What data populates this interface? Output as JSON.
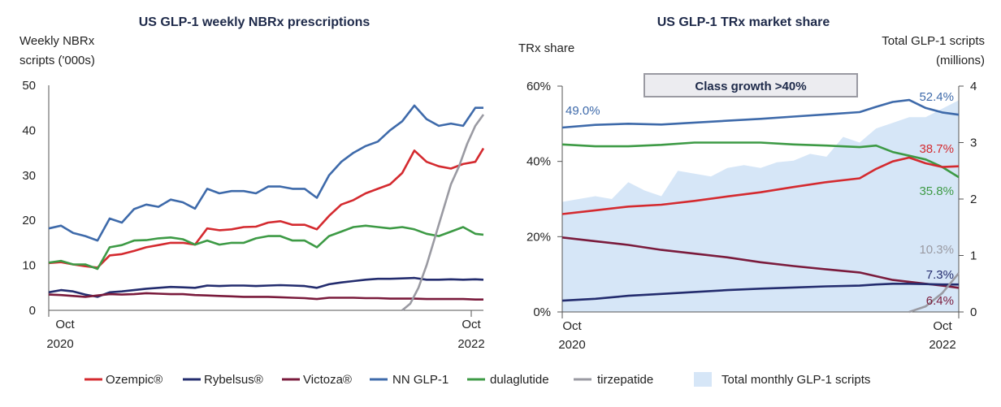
{
  "colors": {
    "ozempic": "#d42a2f",
    "rybelsus": "#232c6e",
    "victoza": "#7a1b3c",
    "nn": "#3e6aaa",
    "dula": "#3d9a45",
    "tirz": "#9a9aa2",
    "area": "#d6e6f7"
  },
  "legend": [
    {
      "key": "ozempic",
      "label": "Ozempic®",
      "kind": "line"
    },
    {
      "key": "rybelsus",
      "label": "Rybelsus®",
      "kind": "line"
    },
    {
      "key": "victoza",
      "label": "Victoza®",
      "kind": "line"
    },
    {
      "key": "nn",
      "label": "NN GLP-1",
      "kind": "line"
    },
    {
      "key": "dula",
      "label": "dulaglutide",
      "kind": "line"
    },
    {
      "key": "tirz",
      "label": "tirzepatide",
      "kind": "line"
    },
    {
      "key": "area",
      "label": "Total monthly GLP-1 scripts",
      "kind": "area"
    }
  ],
  "chart_data": [
    {
      "type": "line",
      "title": "US GLP-1 weekly NBRx prescriptions",
      "ylabel_lines": [
        "Weekly NBRx",
        "scripts ('000s)"
      ],
      "ylim": [
        0,
        50
      ],
      "yticks": [
        0,
        10,
        20,
        30,
        40,
        50
      ],
      "xticks": [
        {
          "x": 0,
          "line1": "Oct",
          "line2": "2020"
        },
        {
          "x": 104,
          "line1": "Oct",
          "line2": "2022"
        }
      ],
      "xrange": [
        0,
        107
      ],
      "series": [
        {
          "key": "nn",
          "x": [
            0,
            3,
            6,
            9,
            12,
            15,
            18,
            21,
            24,
            27,
            30,
            33,
            36,
            39,
            42,
            45,
            48,
            51,
            54,
            57,
            60,
            63,
            66,
            69,
            72,
            75,
            78,
            81,
            84,
            87,
            90,
            93,
            96,
            99,
            102,
            105,
            107
          ],
          "values": [
            18.2,
            18.8,
            17.2,
            16.5,
            15.5,
            20.4,
            19.5,
            22.5,
            23.5,
            23,
            24.6,
            24,
            22.6,
            27,
            26,
            26.5,
            26.5,
            26,
            27.5,
            27.5,
            27,
            27,
            25,
            30,
            33,
            35,
            36.5,
            37.5,
            40,
            42,
            45.5,
            42.5,
            41,
            41.5,
            41,
            45,
            45
          ]
        },
        {
          "key": "ozempic",
          "x": [
            0,
            3,
            6,
            9,
            12,
            15,
            18,
            21,
            24,
            27,
            30,
            33,
            36,
            39,
            42,
            45,
            48,
            51,
            54,
            57,
            60,
            63,
            66,
            69,
            72,
            75,
            78,
            81,
            84,
            87,
            90,
            93,
            96,
            99,
            102,
            105,
            107
          ],
          "values": [
            10.5,
            10.7,
            10.2,
            9.8,
            9.5,
            12.2,
            12.5,
            13.2,
            14,
            14.5,
            15,
            15,
            14.6,
            18.2,
            17.8,
            18,
            18.5,
            18.6,
            19.5,
            19.8,
            19,
            19,
            18,
            21,
            23.5,
            24.5,
            26,
            27,
            28,
            30.5,
            35.5,
            33,
            32,
            31.5,
            32.5,
            33,
            36
          ]
        },
        {
          "key": "dula",
          "x": [
            0,
            3,
            6,
            9,
            12,
            15,
            18,
            21,
            24,
            27,
            30,
            33,
            36,
            39,
            42,
            45,
            48,
            51,
            54,
            57,
            60,
            63,
            66,
            69,
            72,
            75,
            78,
            81,
            84,
            87,
            90,
            93,
            96,
            99,
            102,
            105,
            107
          ],
          "values": [
            10.6,
            11,
            10.2,
            10.2,
            9.2,
            14,
            14.5,
            15.5,
            15.6,
            16,
            16.2,
            15.8,
            14.6,
            15.5,
            14.6,
            15,
            15,
            16,
            16.5,
            16.5,
            15.5,
            15.5,
            14,
            16.5,
            17.5,
            18.5,
            18.8,
            18.5,
            18.2,
            18.5,
            18,
            17,
            16.5,
            17.5,
            18.5,
            17,
            16.8
          ]
        },
        {
          "key": "rybelsus",
          "x": [
            0,
            3,
            6,
            9,
            12,
            15,
            18,
            21,
            24,
            27,
            30,
            33,
            36,
            39,
            42,
            45,
            48,
            51,
            54,
            57,
            60,
            63,
            66,
            69,
            72,
            75,
            78,
            81,
            84,
            87,
            90,
            93,
            96,
            99,
            102,
            105,
            107
          ],
          "values": [
            4,
            4.5,
            4.2,
            3.5,
            3,
            4,
            4.2,
            4.5,
            4.8,
            5,
            5.2,
            5.1,
            5,
            5.5,
            5.4,
            5.5,
            5.5,
            5.4,
            5.5,
            5.6,
            5.5,
            5.4,
            5,
            5.8,
            6.2,
            6.5,
            6.8,
            7,
            7,
            7.1,
            7.2,
            6.8,
            6.8,
            6.9,
            6.8,
            6.9,
            6.8
          ]
        },
        {
          "key": "victoza",
          "x": [
            0,
            3,
            6,
            9,
            12,
            15,
            18,
            21,
            24,
            27,
            30,
            33,
            36,
            39,
            42,
            45,
            48,
            51,
            54,
            57,
            60,
            63,
            66,
            69,
            72,
            75,
            78,
            81,
            84,
            87,
            90,
            93,
            96,
            99,
            102,
            105,
            107
          ],
          "values": [
            3.5,
            3.4,
            3.2,
            3,
            3.3,
            3.6,
            3.5,
            3.6,
            3.8,
            3.7,
            3.6,
            3.6,
            3.4,
            3.3,
            3.2,
            3.1,
            3,
            3,
            3,
            2.9,
            2.8,
            2.7,
            2.5,
            2.8,
            2.8,
            2.8,
            2.7,
            2.7,
            2.6,
            2.6,
            2.6,
            2.5,
            2.5,
            2.5,
            2.5,
            2.4,
            2.4
          ]
        },
        {
          "key": "tirz",
          "x": [
            87,
            89,
            91,
            93,
            95,
            97,
            99,
            101,
            103,
            105,
            107
          ],
          "values": [
            0,
            1.5,
            5,
            10,
            16,
            22,
            28,
            32,
            37,
            41,
            43.5
          ]
        }
      ]
    },
    {
      "type": "line",
      "title": "US GLP-1 TRx market share",
      "ylabel_left": "TRx share",
      "ylabel_right_lines": [
        "Total GLP-1 scripts",
        "(millions)"
      ],
      "ylim": [
        0,
        60
      ],
      "yticks": [
        0,
        20,
        40,
        60
      ],
      "yticks_label": [
        "0%",
        "20%",
        "40%",
        "60%"
      ],
      "y2lim": [
        0,
        4
      ],
      "y2ticks": [
        0,
        1,
        2,
        3,
        4
      ],
      "xrange": [
        0,
        24
      ],
      "xticks": [
        {
          "x": 0,
          "line1": "Oct",
          "line2": "2020"
        },
        {
          "x": 24,
          "line1": "Oct",
          "line2": "2022"
        }
      ],
      "box_label": "Class growth >40%",
      "area": {
        "key": "area",
        "x": [
          0,
          1,
          2,
          3,
          4,
          5,
          6,
          7,
          8,
          9,
          10,
          11,
          12,
          13,
          14,
          15,
          16,
          17,
          18,
          19,
          20,
          21,
          22,
          23,
          24
        ],
        "values": [
          1.95,
          2.0,
          2.05,
          2.0,
          2.3,
          2.15,
          2.05,
          2.5,
          2.45,
          2.4,
          2.55,
          2.6,
          2.55,
          2.65,
          2.68,
          2.8,
          2.75,
          3.1,
          3.0,
          3.25,
          3.35,
          3.45,
          3.45,
          3.6,
          3.75
        ]
      },
      "series": [
        {
          "key": "nn",
          "x": [
            0,
            2,
            4,
            6,
            8,
            10,
            12,
            14,
            16,
            18,
            19,
            20,
            21,
            22,
            23,
            24
          ],
          "values": [
            49,
            49.7,
            50,
            49.8,
            50.3,
            50.8,
            51.3,
            51.9,
            52.5,
            53.1,
            54.5,
            55.8,
            56.3,
            54.2,
            53,
            52.4
          ],
          "label": "52.4%",
          "start_label": "49.0%"
        },
        {
          "key": "dula",
          "x": [
            0,
            2,
            4,
            6,
            8,
            10,
            12,
            14,
            16,
            18,
            19,
            20,
            21,
            22,
            23,
            24
          ],
          "values": [
            44.5,
            44,
            44,
            44.4,
            45,
            45,
            45,
            44.5,
            44.2,
            43.8,
            44.2,
            42.5,
            41.5,
            40.5,
            38.5,
            35.8
          ],
          "label": "35.8%"
        },
        {
          "key": "ozempic",
          "x": [
            0,
            2,
            4,
            6,
            8,
            10,
            12,
            14,
            16,
            18,
            19,
            20,
            21,
            22,
            23,
            24
          ],
          "values": [
            26,
            27,
            28,
            28.5,
            29.5,
            30.7,
            31.8,
            33.2,
            34.5,
            35.5,
            38,
            40,
            41,
            39.5,
            38.5,
            38.7
          ],
          "label": "38.7%"
        },
        {
          "key": "victoza",
          "x": [
            0,
            2,
            4,
            6,
            8,
            10,
            12,
            14,
            16,
            18,
            19,
            20,
            21,
            22,
            23,
            24
          ],
          "values": [
            19.8,
            18.8,
            17.8,
            16.5,
            15.5,
            14.5,
            13.2,
            12.2,
            11.3,
            10.5,
            9.5,
            8.5,
            8,
            7.5,
            7,
            6.4
          ],
          "label": "6.4%"
        },
        {
          "key": "rybelsus",
          "x": [
            0,
            2,
            4,
            6,
            8,
            10,
            12,
            14,
            16,
            18,
            19,
            20,
            21,
            22,
            23,
            24
          ],
          "values": [
            3,
            3.5,
            4.3,
            4.8,
            5.3,
            5.8,
            6.2,
            6.5,
            6.8,
            7,
            7.3,
            7.5,
            7.5,
            7.4,
            7.3,
            7.3
          ],
          "label": "7.3%"
        },
        {
          "key": "tirz",
          "x": [
            21,
            22,
            23,
            24
          ],
          "values": [
            0,
            1.5,
            5,
            10.3
          ],
          "label": "10.3%"
        }
      ]
    }
  ]
}
